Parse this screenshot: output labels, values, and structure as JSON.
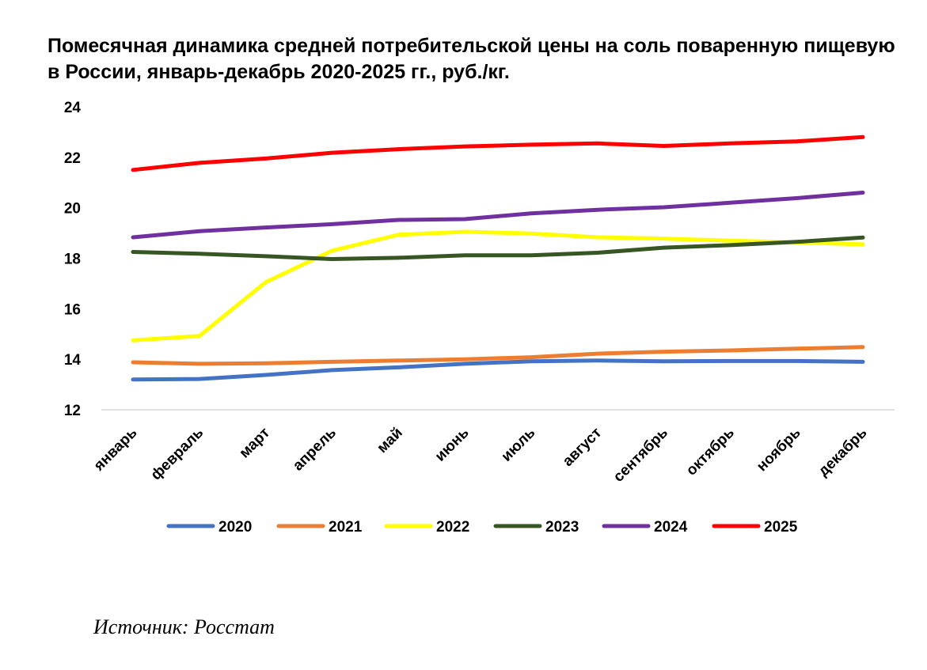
{
  "chart_data": {
    "type": "line",
    "title": "Помесячная динамика средней потребительской цены на соль поваренную пищевую в России, январь-декабрь 2020-2025 гг., руб./кг.",
    "xlabel": "",
    "ylabel": "",
    "ylim": [
      12,
      24
    ],
    "yticks": [
      "12",
      "14",
      "16",
      "18",
      "20",
      "22",
      "24"
    ],
    "grid": false,
    "legend_position": "bottom",
    "categories": [
      "январь",
      "февраль",
      "март",
      "апрель",
      "май",
      "июнь",
      "июль",
      "август",
      "сентябрь",
      "октябрь",
      "ноябрь",
      "декабрь"
    ],
    "series": [
      {
        "name": "2020",
        "color": "#4472C4",
        "values": [
          13.2,
          13.22,
          13.38,
          13.57,
          13.68,
          13.82,
          13.92,
          13.95,
          13.92,
          13.93,
          13.93,
          13.9
        ]
      },
      {
        "name": "2021",
        "color": "#ED7D31",
        "values": [
          13.88,
          13.82,
          13.84,
          13.9,
          13.95,
          14.0,
          14.08,
          14.22,
          14.3,
          14.35,
          14.42,
          14.48
        ]
      },
      {
        "name": "2022",
        "color": "#FFFF00",
        "values": [
          14.75,
          14.92,
          17.05,
          18.3,
          18.93,
          19.05,
          18.98,
          18.83,
          18.78,
          18.7,
          18.63,
          18.55
        ]
      },
      {
        "name": "2023",
        "color": "#375623",
        "values": [
          18.25,
          18.18,
          18.08,
          17.97,
          18.02,
          18.12,
          18.12,
          18.22,
          18.42,
          18.52,
          18.65,
          18.82
        ]
      },
      {
        "name": "2024",
        "color": "#7030A0",
        "values": [
          18.83,
          19.07,
          19.22,
          19.35,
          19.52,
          19.55,
          19.78,
          19.92,
          20.02,
          20.2,
          20.38,
          20.6
        ]
      },
      {
        "name": "2025",
        "color": "#FF0000",
        "values": [
          21.5,
          21.78,
          21.95,
          22.18,
          22.32,
          22.43,
          22.5,
          22.55,
          22.45,
          22.55,
          22.63,
          22.8
        ]
      }
    ]
  },
  "source": "Источник: Росстат"
}
